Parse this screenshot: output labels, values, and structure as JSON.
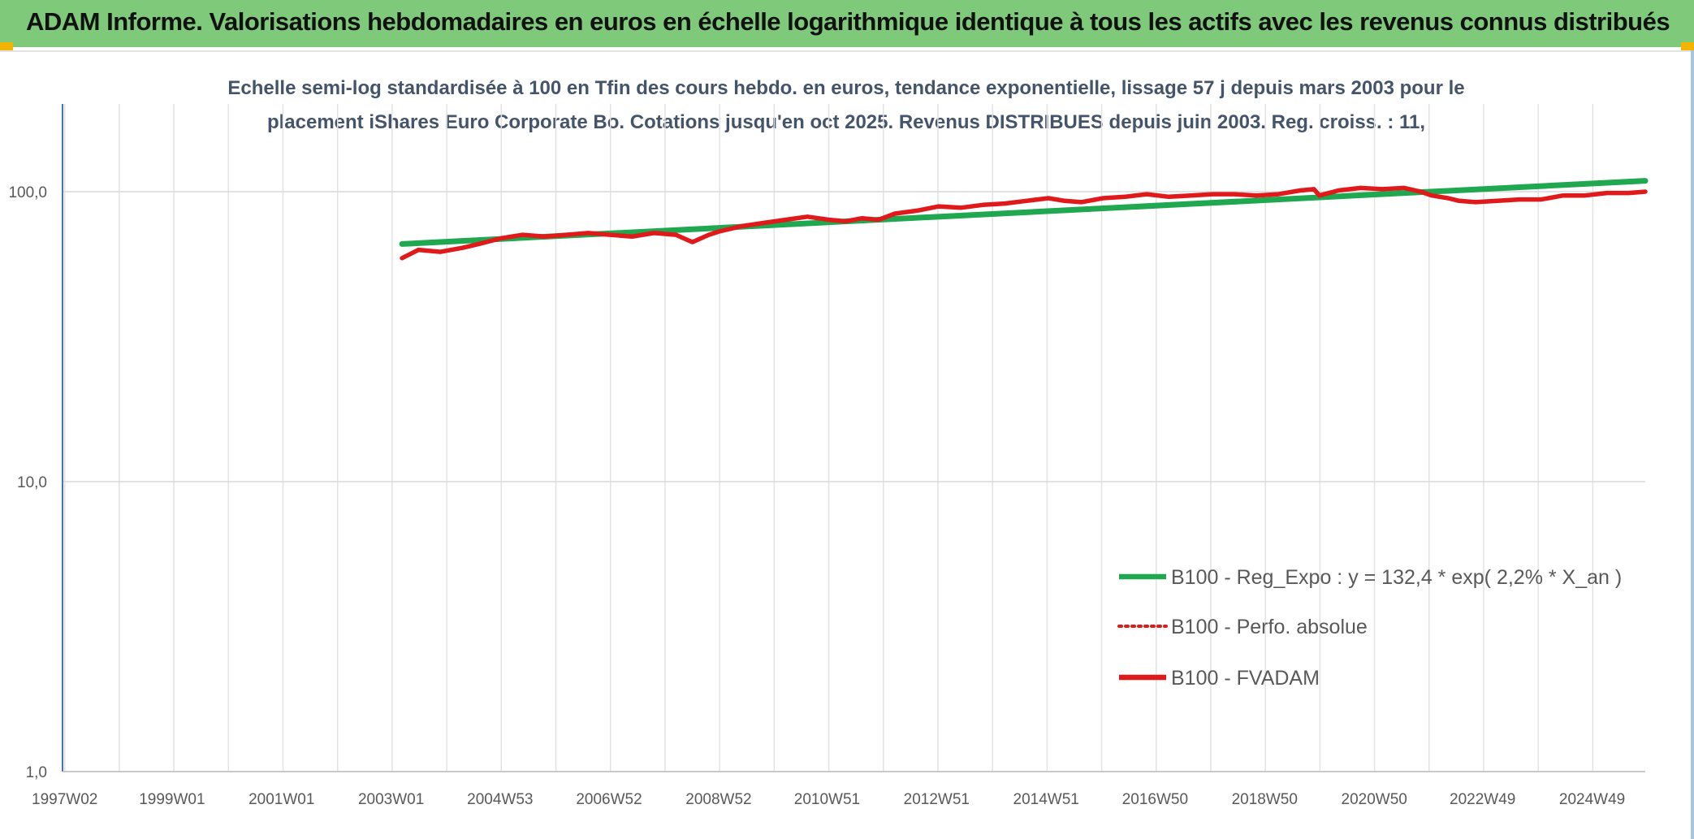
{
  "header": {
    "title": "ADAM Informe. Valorisations hebdomadaires en euros en échelle logarithmique identique à tous les actifs avec les revenus connus distribués"
  },
  "chart_data": {
    "type": "line",
    "title_line1": "Echelle semi-log standardisée à 100 en Tfin des cours hebdo. en euros, tendance exponentielle, lissage 57 j depuis mars 2003 pour le",
    "title_line2": "placement iShares Euro Corporate Bo. Cotations jusqu'en oct 2025. Revenus DISTRIBUES depuis juin 2003. Reg. croiss. : 11,",
    "y_scale": "log",
    "ylim": [
      1,
      200
    ],
    "y_ticks": [
      {
        "value": 100,
        "label": "100,0"
      },
      {
        "value": 10,
        "label": "10,0"
      },
      {
        "value": 1,
        "label": "1,0"
      }
    ],
    "x_range": [
      1997.0,
      2025.9
    ],
    "x_ticks": [
      {
        "value": 1997.04,
        "label": "1997W02"
      },
      {
        "value": 1999.0,
        "label": "1999W01"
      },
      {
        "value": 2001.0,
        "label": "2001W01"
      },
      {
        "value": 2003.0,
        "label": "2003W01"
      },
      {
        "value": 2004.99,
        "label": "2004W53"
      },
      {
        "value": 2006.98,
        "label": "2006W52"
      },
      {
        "value": 2008.98,
        "label": "2008W52"
      },
      {
        "value": 2010.96,
        "label": "2010W51"
      },
      {
        "value": 2012.96,
        "label": "2012W51"
      },
      {
        "value": 2014.96,
        "label": "2014W51"
      },
      {
        "value": 2016.95,
        "label": "2016W50"
      },
      {
        "value": 2018.95,
        "label": "2018W50"
      },
      {
        "value": 2020.95,
        "label": "2020W50"
      },
      {
        "value": 2022.93,
        "label": "2022W49"
      },
      {
        "value": 2024.93,
        "label": "2024W49"
      }
    ],
    "legend_position": "bottom-right",
    "series": [
      {
        "name": "B100 - Reg_Expo : y = 132,4 * exp( 2,2% *  X_an )",
        "color": "#1fa84f",
        "style": "solid",
        "x": [
          2003.2,
          2025.9
        ],
        "y": [
          66,
          109
        ]
      },
      {
        "name": "B100 - Perfo. absolue",
        "color": "#e0191b",
        "style": "dotted",
        "x": [],
        "y": []
      },
      {
        "name": "B100 - FVADAM",
        "color": "#e0191b",
        "style": "solid",
        "x": [
          2003.2,
          2003.5,
          2003.9,
          2004.3,
          2004.6,
          2005.0,
          2005.4,
          2005.8,
          2006.2,
          2006.6,
          2007.0,
          2007.4,
          2007.8,
          2008.2,
          2008.5,
          2008.8,
          2009.0,
          2009.4,
          2009.8,
          2010.2,
          2010.6,
          2011.0,
          2011.3,
          2011.6,
          2011.9,
          2012.2,
          2012.6,
          2013.0,
          2013.4,
          2013.8,
          2014.2,
          2014.6,
          2015.0,
          2015.3,
          2015.6,
          2016.0,
          2016.4,
          2016.8,
          2017.2,
          2017.6,
          2018.0,
          2018.4,
          2018.8,
          2019.2,
          2019.6,
          2019.85,
          2019.95,
          2020.3,
          2020.7,
          2021.1,
          2021.5,
          2021.8,
          2022.0,
          2022.3,
          2022.5,
          2022.8,
          2023.2,
          2023.6,
          2024.0,
          2024.4,
          2024.8,
          2025.2,
          2025.6,
          2025.9
        ],
        "y": [
          59,
          63,
          62,
          64,
          66,
          69,
          71,
          70,
          71,
          72,
          71,
          70,
          72,
          71,
          67,
          71,
          73,
          76,
          78,
          80,
          82,
          80,
          79,
          81,
          80,
          84,
          86,
          89,
          88,
          90,
          91,
          93,
          95,
          93,
          92,
          95,
          96,
          98,
          96,
          97,
          98,
          98,
          97,
          98,
          101,
          102,
          97,
          101,
          103,
          102,
          103,
          100,
          97,
          95,
          93,
          92,
          93,
          94,
          94,
          97,
          97,
          99,
          99,
          100
        ]
      }
    ]
  }
}
